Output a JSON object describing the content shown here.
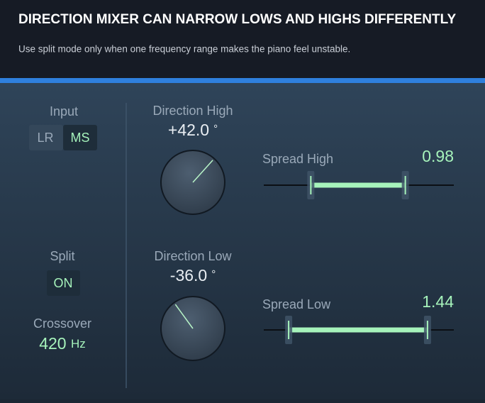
{
  "header": {
    "title": "DIRECTION MIXER CAN NARROW LOWS AND HIGHS DIFFERENTLY",
    "subtitle": "Use split mode only when one frequency range makes the piano feel unstable."
  },
  "input": {
    "label": "Input",
    "options": [
      "LR",
      "MS"
    ]
  },
  "split": {
    "label": "Split",
    "value": "ON"
  },
  "crossover": {
    "label": "Crossover",
    "value": "420",
    "unit": "Hz"
  },
  "direction_high": {
    "label": "Direction High",
    "value": "+42.0",
    "unit": "°"
  },
  "direction_low": {
    "label": "Direction Low",
    "value": "-36.0",
    "unit": "°"
  },
  "spread_high": {
    "label": "Spread High",
    "value": "0.98"
  },
  "spread_low": {
    "label": "Spread Low",
    "value": "1.44"
  }
}
